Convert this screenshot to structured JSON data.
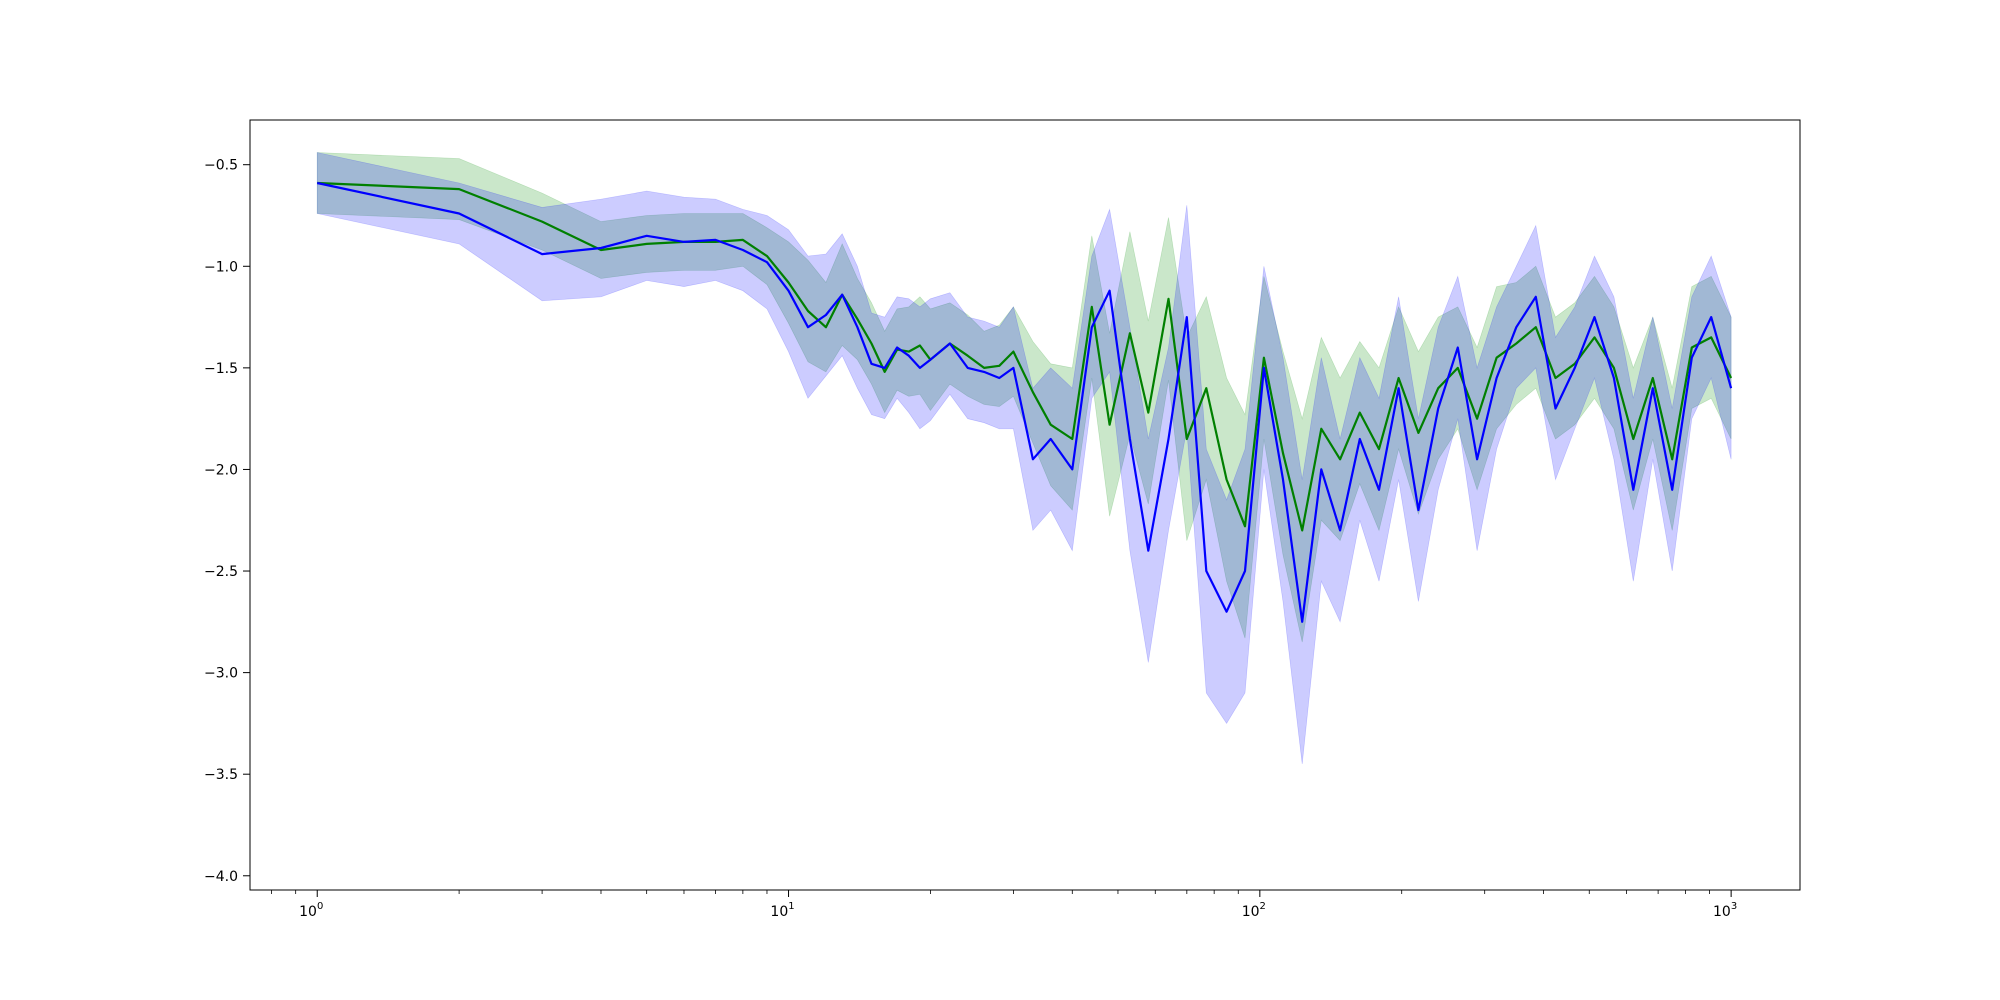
{
  "chart_data": {
    "type": "line",
    "title": "",
    "xlabel": "",
    "ylabel": "",
    "x_scale": "log",
    "xlim": [
      0.72,
      1400
    ],
    "ylim": [
      -4.07,
      -0.28
    ],
    "grid": false,
    "legend": "none",
    "x_ticks": [
      {
        "value": 1,
        "base": "10",
        "exp": "0"
      },
      {
        "value": 10,
        "base": "10",
        "exp": "1"
      },
      {
        "value": 100,
        "base": "10",
        "exp": "2"
      },
      {
        "value": 1000,
        "base": "10",
        "exp": "3"
      }
    ],
    "y_ticks": [
      {
        "value": -0.5,
        "label": "−0.5"
      },
      {
        "value": -1.0,
        "label": "−1.0"
      },
      {
        "value": -1.5,
        "label": "−1.5"
      },
      {
        "value": -2.0,
        "label": "−2.0"
      },
      {
        "value": -2.5,
        "label": "−2.5"
      },
      {
        "value": -3.0,
        "label": "−3.0"
      },
      {
        "value": -3.5,
        "label": "−3.5"
      },
      {
        "value": -4.0,
        "label": "−4.0"
      }
    ],
    "series": [
      {
        "color": "#008000",
        "band_color": "#2ca02c",
        "band_opacity": 0.25,
        "x": [
          1,
          2,
          3,
          4,
          5,
          6,
          7,
          8,
          9,
          10,
          11,
          12,
          13,
          14,
          15,
          16,
          17,
          18,
          19,
          20,
          22,
          24,
          26,
          28,
          30,
          33,
          36,
          40,
          44,
          48,
          53,
          58,
          64,
          70,
          77,
          85,
          93,
          102,
          112,
          123,
          135,
          148,
          163,
          179,
          197,
          217,
          239,
          263,
          289,
          318,
          350,
          385,
          424,
          466,
          513,
          564,
          620,
          682,
          750,
          825,
          907,
          1000
        ],
        "y": [
          -0.59,
          -0.62,
          -0.78,
          -0.92,
          -0.89,
          -0.88,
          -0.88,
          -0.87,
          -0.95,
          -1.08,
          -1.22,
          -1.3,
          -1.14,
          -1.26,
          -1.38,
          -1.52,
          -1.41,
          -1.42,
          -1.39,
          -1.46,
          -1.38,
          -1.44,
          -1.5,
          -1.49,
          -1.42,
          -1.62,
          -1.78,
          -1.85,
          -1.2,
          -1.78,
          -1.33,
          -1.72,
          -1.16,
          -1.85,
          -1.6,
          -2.05,
          -2.28,
          -1.45,
          -1.92,
          -2.3,
          -1.8,
          -1.95,
          -1.72,
          -1.9,
          -1.55,
          -1.82,
          -1.6,
          -1.5,
          -1.75,
          -1.45,
          -1.38,
          -1.3,
          -1.55,
          -1.48,
          -1.35,
          -1.5,
          -1.85,
          -1.55,
          -1.95,
          -1.4,
          -1.35,
          -1.55
        ],
        "band_half_width": [
          0.15,
          0.15,
          0.14,
          0.14,
          0.14,
          0.14,
          0.14,
          0.13,
          0.14,
          0.2,
          0.25,
          0.22,
          0.25,
          0.2,
          0.2,
          0.2,
          0.2,
          0.22,
          0.24,
          0.25,
          0.2,
          0.2,
          0.18,
          0.2,
          0.22,
          0.25,
          0.3,
          0.35,
          0.35,
          0.45,
          0.5,
          0.45,
          0.4,
          0.5,
          0.45,
          0.5,
          0.55,
          0.4,
          0.5,
          0.55,
          0.45,
          0.4,
          0.35,
          0.4,
          0.35,
          0.4,
          0.35,
          0.3,
          0.35,
          0.35,
          0.3,
          0.3,
          0.3,
          0.3,
          0.3,
          0.3,
          0.35,
          0.3,
          0.35,
          0.3,
          0.3,
          0.3
        ]
      },
      {
        "color": "#0000ff",
        "band_color": "#0000ff",
        "band_opacity": 0.2,
        "x": [
          1,
          2,
          3,
          4,
          5,
          6,
          7,
          8,
          9,
          10,
          11,
          12,
          13,
          14,
          15,
          16,
          17,
          18,
          19,
          20,
          22,
          24,
          26,
          28,
          30,
          33,
          36,
          40,
          44,
          48,
          53,
          58,
          64,
          70,
          77,
          85,
          93,
          102,
          112,
          123,
          135,
          148,
          163,
          179,
          197,
          217,
          239,
          263,
          289,
          318,
          350,
          385,
          424,
          466,
          513,
          564,
          620,
          682,
          750,
          825,
          907,
          1000
        ],
        "y": [
          -0.59,
          -0.74,
          -0.94,
          -0.91,
          -0.85,
          -0.88,
          -0.87,
          -0.92,
          -0.98,
          -1.12,
          -1.3,
          -1.24,
          -1.14,
          -1.3,
          -1.48,
          -1.5,
          -1.4,
          -1.44,
          -1.5,
          -1.46,
          -1.38,
          -1.5,
          -1.52,
          -1.55,
          -1.5,
          -1.95,
          -1.85,
          -2.0,
          -1.3,
          -1.12,
          -1.85,
          -2.4,
          -1.85,
          -1.25,
          -2.5,
          -2.7,
          -2.5,
          -1.5,
          -2.05,
          -2.75,
          -2.0,
          -2.3,
          -1.85,
          -2.1,
          -1.6,
          -2.2,
          -1.7,
          -1.4,
          -1.95,
          -1.55,
          -1.3,
          -1.15,
          -1.7,
          -1.5,
          -1.25,
          -1.55,
          -2.1,
          -1.6,
          -2.1,
          -1.45,
          -1.25,
          -1.6
        ],
        "band_half_width": [
          0.15,
          0.15,
          0.23,
          0.24,
          0.22,
          0.22,
          0.2,
          0.2,
          0.23,
          0.3,
          0.35,
          0.3,
          0.3,
          0.3,
          0.25,
          0.25,
          0.25,
          0.28,
          0.3,
          0.3,
          0.25,
          0.25,
          0.25,
          0.25,
          0.3,
          0.35,
          0.35,
          0.4,
          0.35,
          0.4,
          0.55,
          0.55,
          0.45,
          0.55,
          0.6,
          0.55,
          0.6,
          0.5,
          0.6,
          0.7,
          0.55,
          0.45,
          0.4,
          0.45,
          0.45,
          0.45,
          0.4,
          0.35,
          0.45,
          0.35,
          0.3,
          0.35,
          0.35,
          0.3,
          0.3,
          0.4,
          0.45,
          0.35,
          0.4,
          0.3,
          0.3,
          0.35
        ]
      }
    ]
  }
}
